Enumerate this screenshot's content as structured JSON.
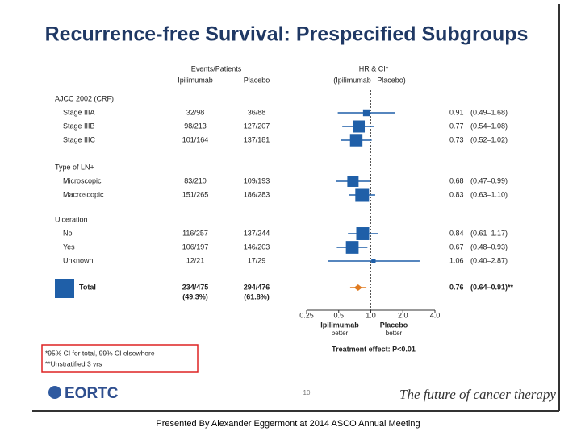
{
  "chart_data": {
    "type": "forest",
    "title": "Recurrence-free Survival: Prespecified Subgroups",
    "header": {
      "events": "Events/Patients",
      "arm1": "Ipilimumab",
      "arm2": "Placebo",
      "hr": "HR & CI*",
      "hr_sub": "(Ipilimumab : Placebo)"
    },
    "groups": [
      {
        "label": "AJCC 2002 (CRF)",
        "rows": [
          {
            "label": "Stage IIIA",
            "ipi": "32/98",
            "placebo": "36/88",
            "hr": 0.91,
            "lo": 0.49,
            "hi": 1.68,
            "hr_label": "0.91",
            "ci_label": "(0.49–1.68)"
          },
          {
            "label": "Stage IIIB",
            "ipi": "98/213",
            "placebo": "127/207",
            "hr": 0.77,
            "lo": 0.54,
            "hi": 1.08,
            "hr_label": "0.77",
            "ci_label": "(0.54–1.08)"
          },
          {
            "label": "Stage IIIC",
            "ipi": "101/164",
            "placebo": "137/181",
            "hr": 0.73,
            "lo": 0.52,
            "hi": 1.02,
            "hr_label": "0.73",
            "ci_label": "(0.52–1.02)"
          }
        ]
      },
      {
        "label": "Type of LN+",
        "rows": [
          {
            "label": "Microscopic",
            "ipi": "83/210",
            "placebo": "109/193",
            "hr": 0.68,
            "lo": 0.47,
            "hi": 0.99,
            "hr_label": "0.68",
            "ci_label": "(0.47–0.99)"
          },
          {
            "label": "Macroscopic",
            "ipi": "151/265",
            "placebo": "186/283",
            "hr": 0.83,
            "lo": 0.63,
            "hi": 1.1,
            "hr_label": "0.83",
            "ci_label": "(0.63–1.10)"
          }
        ]
      },
      {
        "label": "Ulceration",
        "rows": [
          {
            "label": "No",
            "ipi": "116/257",
            "placebo": "137/244",
            "hr": 0.84,
            "lo": 0.61,
            "hi": 1.17,
            "hr_label": "0.84",
            "ci_label": "(0.61–1.17)"
          },
          {
            "label": "Yes",
            "ipi": "106/197",
            "placebo": "146/203",
            "hr": 0.67,
            "lo": 0.48,
            "hi": 0.93,
            "hr_label": "0.67",
            "ci_label": "(0.48–0.93)"
          },
          {
            "label": "Unknown",
            "ipi": "12/21",
            "placebo": "17/29",
            "hr": 1.06,
            "lo": 0.4,
            "hi": 2.87,
            "hr_label": "1.06",
            "ci_label": "(0.40–2.87)"
          }
        ]
      }
    ],
    "total": {
      "label": "Total",
      "ipi": "234/475",
      "placebo": "294/476",
      "ipi_pct": "(49.3%)",
      "placebo_pct": "(61.8%)",
      "hr": 0.76,
      "lo": 0.64,
      "hi": 0.91,
      "hr_label": "0.76",
      "ci_label": "(0.64–0.91)**"
    },
    "log_scale": true,
    "xlim": [
      0.25,
      4
    ],
    "xticks": [
      0.25,
      0.5,
      {
        "value": 1,
        "label": "1.0"
      },
      {
        "value": 2,
        "label": "2.0"
      },
      {
        "value": 4,
        "label": "4.0"
      }
    ],
    "x_left_label": [
      "Ipilimumab",
      "better"
    ],
    "x_right_label": [
      "Placebo",
      "better"
    ],
    "effect": "Treatment effect: P<0.01",
    "footnotes": [
      "*95% CI for total, 99% CI elsewhere",
      "**Unstratified 3 yrs"
    ],
    "color": "#1f5fa8",
    "total_color": "#e07b20",
    "logo": "EORTC",
    "page_number": "10",
    "tagline": "The future of cancer therapy",
    "caption": "Presented By Alexander Eggermont at 2014 ASCO Annual Meeting"
  }
}
